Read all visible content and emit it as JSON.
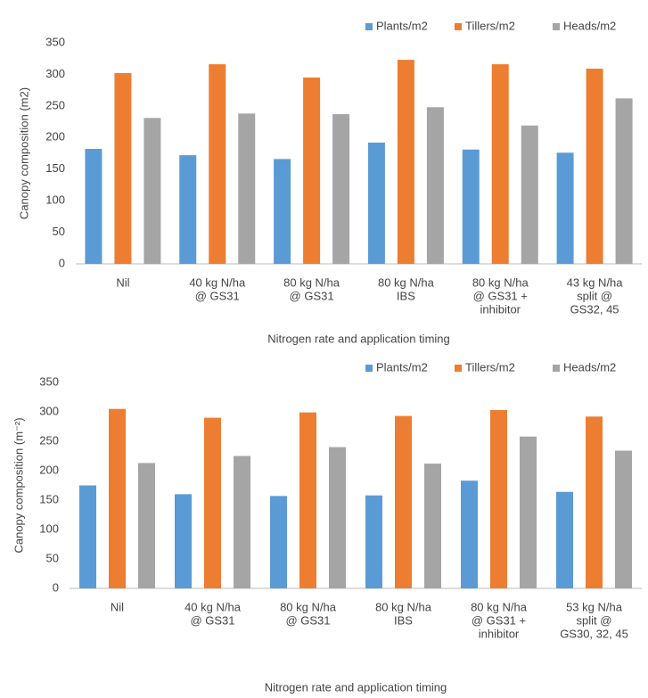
{
  "chart_data": [
    {
      "type": "bar",
      "x_label": "Nitrogen rate and application timing",
      "y_label": "Canopy composition (m2)",
      "categories": [
        [
          "Nil"
        ],
        [
          "40 kg N/ha",
          "@ GS31"
        ],
        [
          "80 kg N/ha",
          "@ GS31"
        ],
        [
          "80 kg N/ha",
          "IBS"
        ],
        [
          "80 kg N/ha",
          "@ GS31 +",
          "inhibitor"
        ],
        [
          "43 kg N/ha",
          "split @",
          "GS32, 45"
        ]
      ],
      "series": [
        {
          "name": "Plants/m2",
          "color": "#5b9bd5",
          "values": [
            182,
            172,
            166,
            192,
            181,
            176
          ]
        },
        {
          "name": "Tillers/m2",
          "color": "#ed7d31",
          "values": [
            302,
            316,
            295,
            323,
            316,
            309
          ]
        },
        {
          "name": "Heads/m2",
          "color": "#a5a5a5",
          "values": [
            231,
            238,
            237,
            248,
            219,
            262
          ]
        }
      ],
      "ylim": [
        0,
        350
      ],
      "yticks": [
        0,
        50,
        100,
        150,
        200,
        250,
        300,
        350
      ],
      "grid": false,
      "legend": "top-right"
    },
    {
      "type": "bar",
      "x_label": "Nitrogen rate and application timing",
      "y_label": "Canopy composition (m⁻²)",
      "categories": [
        [
          "Nil"
        ],
        [
          "40 kg N/ha",
          "@ GS31"
        ],
        [
          "80 kg N/ha",
          "@ GS31"
        ],
        [
          "80 kg N/ha",
          "IBS"
        ],
        [
          "80 kg N/ha",
          "@ GS31 +",
          "inhibitor"
        ],
        [
          "53 kg N/ha",
          "split @",
          "GS30, 32, 45"
        ]
      ],
      "series": [
        {
          "name": "Plants/m2",
          "color": "#5b9bd5",
          "values": [
            175,
            160,
            157,
            158,
            183,
            164
          ]
        },
        {
          "name": "Tillers/m2",
          "color": "#ed7d31",
          "values": [
            305,
            290,
            299,
            293,
            303,
            292
          ]
        },
        {
          "name": "Heads/m2",
          "color": "#a5a5a5",
          "values": [
            213,
            225,
            240,
            212,
            258,
            234
          ]
        }
      ],
      "ylim": [
        0,
        350
      ],
      "yticks": [
        0,
        50,
        100,
        150,
        200,
        250,
        300,
        350
      ],
      "grid": false,
      "legend": "top-right"
    }
  ]
}
